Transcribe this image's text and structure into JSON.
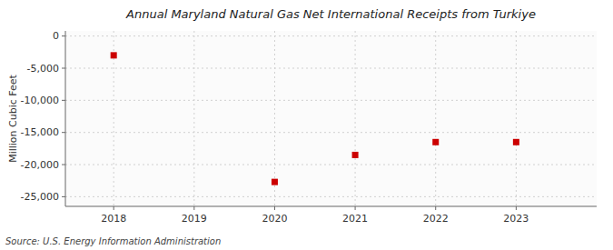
{
  "chart_data": {
    "type": "scatter",
    "title": "Annual Maryland Natural Gas Net International Receipts from Turkiye",
    "ylabel": "Million Cubic Feet",
    "annotations": [
      "Source: U.S. Energy Information Administration"
    ],
    "x": [
      2018,
      2020,
      2021,
      2022,
      2023
    ],
    "values": [
      -3000,
      -22700,
      -18500,
      -16500,
      -16500
    ],
    "xlim": [
      2017.4,
      2024.0
    ],
    "ylim": [
      -26500,
      800
    ],
    "xticks": [
      2018,
      2019,
      2020,
      2021,
      2022,
      2023
    ],
    "yticks": [
      0,
      {
        "value": -5000,
        "label": "-5,000"
      },
      {
        "value": -10000,
        "label": "-10,000"
      },
      {
        "value": -15000,
        "label": "-15,000"
      },
      {
        "value": -20000,
        "label": "-20,000"
      },
      {
        "value": -25000,
        "label": "-25,000"
      }
    ],
    "color": "#cc0000",
    "marker": "square",
    "grid": true
  }
}
